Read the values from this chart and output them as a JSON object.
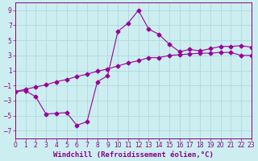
{
  "xlabel": "Windchill (Refroidissement éolien,°C)",
  "xlim": [
    0,
    23
  ],
  "ylim": [
    -8,
    10
  ],
  "xticks": [
    0,
    1,
    2,
    3,
    4,
    5,
    6,
    7,
    8,
    9,
    10,
    11,
    12,
    13,
    14,
    15,
    16,
    17,
    18,
    19,
    20,
    21,
    22,
    23
  ],
  "yticks": [
    -7,
    -5,
    -3,
    -1,
    1,
    3,
    5,
    7,
    9
  ],
  "background_color": "#cceef0",
  "grid_color": "#b0d8dc",
  "line_color": "#990099",
  "line1_x": [
    0,
    1,
    2,
    3,
    4,
    5,
    6,
    7,
    8,
    9,
    10,
    11,
    12,
    13,
    14,
    15,
    16,
    17,
    18,
    19,
    20,
    21,
    22,
    23
  ],
  "line1_y": [
    -1.8,
    -1.7,
    -2.5,
    -4.8,
    -4.7,
    -4.6,
    -6.3,
    -5.8,
    -0.5,
    0.3,
    6.2,
    7.3,
    9.0,
    6.5,
    5.8,
    4.5,
    3.5,
    3.8,
    3.6,
    3.9,
    4.2,
    4.2,
    4.3,
    4.1
  ],
  "line2_x": [
    0,
    1,
    2,
    3,
    4,
    5,
    6,
    7,
    8,
    9,
    10,
    11,
    12,
    13,
    14,
    15,
    16,
    17,
    18,
    19,
    20,
    21,
    22,
    23
  ],
  "line2_y": [
    -1.8,
    -1.5,
    -1.2,
    -0.9,
    -0.5,
    -0.2,
    0.2,
    0.5,
    0.9,
    1.2,
    1.6,
    2.0,
    2.3,
    2.7,
    2.7,
    3.0,
    3.1,
    3.2,
    3.3,
    3.3,
    3.4,
    3.4,
    3.0,
    3.0
  ],
  "marker": "D",
  "marker_size": 2.5,
  "font_color": "#880088",
  "tick_font_size": 5.5,
  "label_font_size": 6.5
}
